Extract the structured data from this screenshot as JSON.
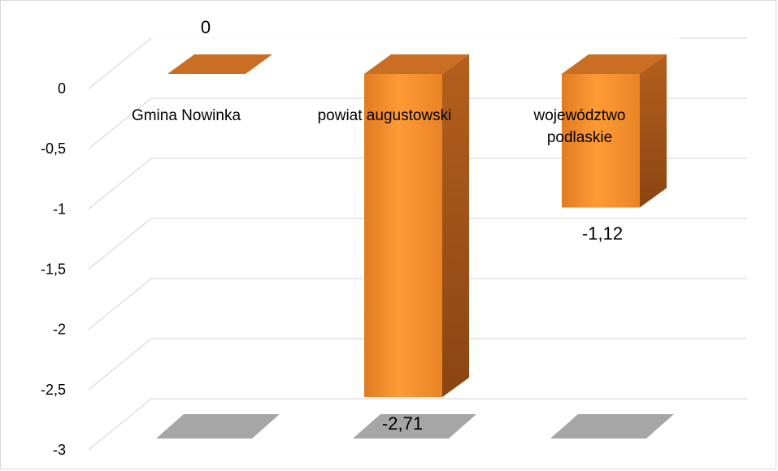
{
  "chart_data": {
    "type": "bar",
    "style": "3d-column",
    "categories": [
      "Gmina Nowinka",
      "powiat augustowski",
      "województwo podlaskie"
    ],
    "category_label_lines": [
      [
        "Gmina Nowinka"
      ],
      [
        "powiat augustowski"
      ],
      [
        "województwo",
        "podlaskie"
      ]
    ],
    "values": [
      0,
      -2.71,
      -1.12
    ],
    "data_labels": [
      "0",
      "-2,71",
      "-1,12"
    ],
    "yticks": [
      0,
      -0.5,
      -1,
      -1.5,
      -2,
      -2.5,
      -3
    ],
    "ytick_labels": [
      "0",
      "-0,5",
      "-1",
      "-1,5",
      "-2",
      "-2,5",
      "-3"
    ],
    "ylim": [
      -3,
      0
    ],
    "grid": true,
    "legend": "none",
    "title": "",
    "xlabel": "",
    "ylabel": "",
    "colors": {
      "bar_front": "#f08c2a",
      "bar_front_light": "#ff9b35",
      "bar_side": "#a8561a",
      "bar_top": "#c96e22",
      "floor": "#a6a6a6",
      "grid": "#d9d9d9"
    }
  }
}
